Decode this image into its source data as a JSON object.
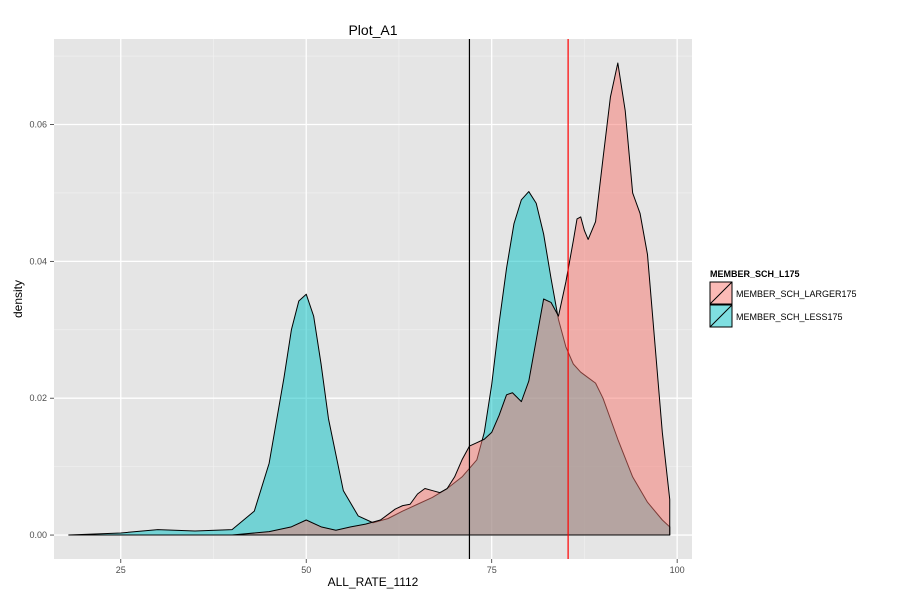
{
  "chart_data": {
    "type": "area",
    "title": "Plot_A1",
    "xlabel": "ALL_RATE_1112",
    "ylabel": "density",
    "xlim": [
      16,
      102
    ],
    "ylim": [
      -0.0035,
      0.0725
    ],
    "x_ticks": [
      {
        "value": 25,
        "label": "25"
      },
      {
        "value": 50,
        "label": "50"
      },
      {
        "value": 75,
        "label": "75"
      },
      {
        "value": 100,
        "label": "100"
      }
    ],
    "y_ticks": [
      {
        "value": 0.0,
        "label": "0.00"
      },
      {
        "value": 0.02,
        "label": "0.02"
      },
      {
        "value": 0.04,
        "label": "0.04"
      },
      {
        "value": 0.06,
        "label": "0.06"
      }
    ],
    "grid": true,
    "legend": {
      "title": "MEMBER_SCH_L175",
      "position": "right"
    },
    "series": [
      {
        "name": "MEMBER_SCH_LESS175",
        "color": "#00BFC4",
        "x": [
          18,
          25,
          30,
          35,
          40,
          43,
          45,
          47,
          48,
          49,
          50,
          51,
          52,
          53,
          55,
          57,
          59,
          61,
          63,
          65,
          67,
          69,
          71,
          73,
          74,
          75,
          76,
          77,
          78,
          79,
          80,
          81,
          82,
          83,
          84,
          85,
          86,
          87,
          88,
          89,
          90,
          92,
          94,
          96,
          98,
          99
        ],
        "y": [
          0.0,
          0.0003,
          0.0008,
          0.0006,
          0.0008,
          0.0035,
          0.0105,
          0.023,
          0.03,
          0.0342,
          0.0352,
          0.032,
          0.025,
          0.017,
          0.0065,
          0.0028,
          0.0018,
          0.0024,
          0.0035,
          0.0045,
          0.0055,
          0.0068,
          0.0085,
          0.011,
          0.015,
          0.022,
          0.031,
          0.039,
          0.0455,
          0.049,
          0.0502,
          0.0485,
          0.044,
          0.0375,
          0.0315,
          0.0275,
          0.025,
          0.0238,
          0.023,
          0.0222,
          0.02,
          0.014,
          0.0085,
          0.0048,
          0.0022,
          0.0012
        ]
      },
      {
        "name": "MEMBER_SCH_LARGER175",
        "color": "#F8766D",
        "x": [
          18,
          40,
          45,
          48,
          50,
          52,
          54,
          56,
          58,
          60,
          62,
          63,
          64,
          65,
          66,
          67,
          68,
          69,
          70,
          71,
          72,
          73,
          74,
          75,
          76,
          77,
          77.8,
          79,
          80,
          81,
          82,
          83,
          84,
          85,
          86,
          86.5,
          87,
          87.5,
          88,
          89,
          90,
          91,
          92,
          93,
          94,
          95,
          96,
          97,
          98,
          99
        ],
        "y": [
          0.0,
          0.0,
          0.0005,
          0.0012,
          0.0022,
          0.0012,
          0.0007,
          0.0012,
          0.0016,
          0.0022,
          0.0038,
          0.0043,
          0.0045,
          0.006,
          0.0068,
          0.0065,
          0.0062,
          0.0068,
          0.0085,
          0.011,
          0.013,
          0.0135,
          0.014,
          0.015,
          0.0175,
          0.0205,
          0.0208,
          0.0195,
          0.0225,
          0.0285,
          0.0345,
          0.034,
          0.032,
          0.037,
          0.043,
          0.0462,
          0.0465,
          0.0445,
          0.0432,
          0.0458,
          0.055,
          0.064,
          0.069,
          0.062,
          0.05,
          0.047,
          0.041,
          0.028,
          0.015,
          0.0052
        ]
      }
    ],
    "vlines": [
      {
        "x": 72,
        "color": "#000000"
      },
      {
        "x": 85.3,
        "color": "#FF0000"
      }
    ]
  }
}
